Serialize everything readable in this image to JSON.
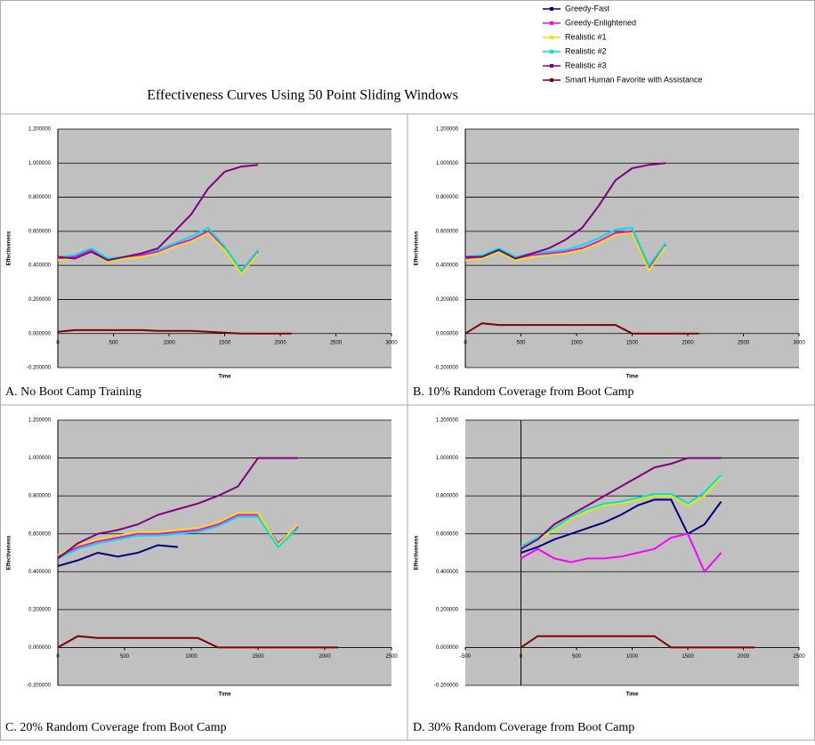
{
  "title": "Effectiveness Curves Using 50 Point Sliding Windows",
  "legend": [
    {
      "name": "Greedy-Fast",
      "color": "#00007f"
    },
    {
      "name": "Greedy-Enlightened",
      "color": "#ff00ff"
    },
    {
      "name": "Realistic #1",
      "color": "#e8e800"
    },
    {
      "name": "Realistic #2",
      "color": "#00e0e0"
    },
    {
      "name": "Realistic #3",
      "color": "#800080"
    },
    {
      "name": "Smart Human Favorite with Assistance",
      "color": "#800000"
    }
  ],
  "chart_data": [
    {
      "type": "line",
      "caption": "A. No Boot Camp Training",
      "xlabel": "Time",
      "ylabel": "Effectiveness",
      "grid": true,
      "xlim": [
        0,
        3000
      ],
      "xticks": [
        0,
        500,
        1000,
        1500,
        2000,
        2500,
        3000
      ],
      "ylim": [
        -0.2,
        1.2
      ],
      "yticks": [
        {
          "value": -0.2,
          "label": "-0.200000"
        },
        {
          "value": 0,
          "label": "0.000000"
        },
        {
          "value": 0.2,
          "label": "0.200000"
        },
        {
          "value": 0.4,
          "label": "0.400000"
        },
        {
          "value": 0.6,
          "label": "0.600000"
        },
        {
          "value": 0.8,
          "label": "0.800000"
        },
        {
          "value": 1.0,
          "label": "1.000000"
        },
        {
          "value": 1.2,
          "label": "1.200000"
        }
      ],
      "x": [
        0,
        150,
        300,
        450,
        600,
        750,
        900,
        1050,
        1200,
        1350,
        1500,
        1650,
        1800,
        1950,
        2100
      ],
      "series": [
        {
          "values": [
            0.44,
            0.45,
            0.49,
            0.43,
            0.44,
            0.46,
            0.48,
            0.52,
            0.55,
            0.6,
            0.5,
            0.36,
            0.48,
            null,
            null
          ]
        },
        {
          "values": [
            0.44,
            0.45,
            0.49,
            0.43,
            0.44,
            0.46,
            0.48,
            0.52,
            0.55,
            0.6,
            0.5,
            0.36,
            0.48,
            null,
            null
          ]
        },
        {
          "values": [
            0.43,
            0.44,
            0.48,
            0.42,
            0.44,
            0.45,
            0.47,
            0.51,
            0.54,
            0.59,
            0.49,
            0.35,
            0.47,
            null,
            null
          ]
        },
        {
          "values": [
            0.45,
            0.46,
            0.5,
            0.44,
            0.45,
            0.47,
            0.49,
            0.53,
            0.57,
            0.62,
            0.51,
            0.37,
            0.49,
            null,
            null
          ]
        },
        {
          "values": [
            0.45,
            0.44,
            0.48,
            0.43,
            0.45,
            0.47,
            0.5,
            0.6,
            0.7,
            0.85,
            0.95,
            0.98,
            0.99,
            null,
            null
          ]
        },
        {
          "values": [
            0.01,
            0.02,
            0.02,
            0.02,
            0.02,
            0.02,
            0.015,
            0.015,
            0.015,
            0.01,
            0.005,
            0,
            0,
            0,
            0
          ]
        }
      ]
    },
    {
      "type": "line",
      "caption": "B. 10% Random Coverage from Boot Camp",
      "xlabel": "Time",
      "ylabel": "Effectiveness",
      "grid": true,
      "xlim": [
        0,
        3000
      ],
      "xticks": [
        0,
        500,
        1000,
        1500,
        2000,
        2500,
        3000
      ],
      "ylim": [
        -0.2,
        1.2
      ],
      "yticks": [
        {
          "value": -0.2,
          "label": "-0.200000"
        },
        {
          "value": 0,
          "label": "0.000000"
        },
        {
          "value": 0.2,
          "label": "0.200000"
        },
        {
          "value": 0.4,
          "label": "0.400000"
        },
        {
          "value": 0.6,
          "label": "0.600000"
        },
        {
          "value": 0.8,
          "label": "0.800000"
        },
        {
          "value": 1.0,
          "label": "1.000000"
        },
        {
          "value": 1.2,
          "label": "1.200000"
        }
      ],
      "x": [
        0,
        150,
        300,
        450,
        600,
        750,
        900,
        1050,
        1200,
        1350,
        1500,
        1650,
        1800,
        1950,
        2100
      ],
      "series": [
        {
          "values": [
            0.44,
            0.45,
            0.49,
            0.44,
            0.46,
            0.47,
            0.48,
            0.5,
            0.54,
            0.59,
            0.6,
            0.38,
            0.52,
            null,
            null
          ]
        },
        {
          "values": [
            0.44,
            0.45,
            0.49,
            0.44,
            0.46,
            0.47,
            0.48,
            0.5,
            0.54,
            0.59,
            0.6,
            0.38,
            0.52,
            null,
            null
          ]
        },
        {
          "values": [
            0.43,
            0.44,
            0.48,
            0.43,
            0.45,
            0.46,
            0.47,
            0.49,
            0.53,
            0.58,
            0.59,
            0.37,
            0.51,
            null,
            null
          ]
        },
        {
          "values": [
            0.45,
            0.46,
            0.5,
            0.45,
            0.47,
            0.48,
            0.49,
            0.52,
            0.56,
            0.61,
            0.62,
            0.4,
            0.53,
            null,
            null
          ]
        },
        {
          "values": [
            0.45,
            0.45,
            0.49,
            0.44,
            0.47,
            0.5,
            0.55,
            0.62,
            0.75,
            0.9,
            0.97,
            0.99,
            1.0,
            null,
            null
          ]
        },
        {
          "values": [
            0,
            0.06,
            0.05,
            0.05,
            0.05,
            0.05,
            0.05,
            0.05,
            0.05,
            0.05,
            0,
            0,
            0,
            0,
            0
          ]
        }
      ]
    },
    {
      "type": "line",
      "caption": "C. 20% Random Coverage from Boot Camp",
      "xlabel": "Time",
      "ylabel": "Effectiveness",
      "grid": true,
      "xlim": [
        0,
        2500
      ],
      "xticks": [
        0,
        500,
        1000,
        1500,
        2000,
        2500
      ],
      "ylim": [
        -0.2,
        1.2
      ],
      "yticks": [
        {
          "value": -0.2,
          "label": "-0.200000"
        },
        {
          "value": 0,
          "label": "0.000000"
        },
        {
          "value": 0.2,
          "label": "0.200000"
        },
        {
          "value": 0.4,
          "label": "0.400000"
        },
        {
          "value": 0.6,
          "label": "0.600000"
        },
        {
          "value": 0.8,
          "label": "0.800000"
        },
        {
          "value": 1.0,
          "label": "1.000000"
        },
        {
          "value": 1.2,
          "label": "1.200000"
        }
      ],
      "x": [
        0,
        150,
        300,
        450,
        600,
        750,
        900,
        1050,
        1200,
        1350,
        1500,
        1650,
        1800,
        1950,
        2100
      ],
      "series": [
        {
          "values": [
            0.43,
            0.46,
            0.5,
            0.48,
            0.5,
            0.54,
            0.53,
            null,
            null,
            null,
            null,
            null,
            null,
            null,
            null
          ]
        },
        {
          "values": [
            0.48,
            0.53,
            0.56,
            0.58,
            0.6,
            0.6,
            0.61,
            0.62,
            0.65,
            0.7,
            0.7,
            0.55,
            0.64,
            null,
            null
          ]
        },
        {
          "values": [
            0.49,
            0.54,
            0.57,
            0.59,
            0.61,
            0.61,
            0.62,
            0.63,
            0.66,
            0.71,
            0.71,
            0.54,
            0.65,
            null,
            null
          ]
        },
        {
          "values": [
            0.47,
            0.52,
            0.55,
            0.57,
            0.59,
            0.59,
            0.6,
            0.61,
            0.64,
            0.69,
            0.69,
            0.53,
            0.63,
            null,
            null
          ]
        },
        {
          "values": [
            0.47,
            0.55,
            0.6,
            0.62,
            0.65,
            0.7,
            0.73,
            0.76,
            0.8,
            0.85,
            1.0,
            1.0,
            1.0,
            null,
            null
          ]
        },
        {
          "values": [
            0,
            0.06,
            0.05,
            0.05,
            0.05,
            0.05,
            0.05,
            0.05,
            0,
            0,
            0,
            0,
            0,
            0,
            0
          ]
        }
      ]
    },
    {
      "type": "line",
      "caption": "D. 30% Random Coverage from Boot Camp",
      "xlabel": "Time",
      "ylabel": "Effectiveness",
      "grid": true,
      "xlim": [
        -500,
        2500
      ],
      "xticks": [
        -500,
        0,
        500,
        1000,
        1500,
        2000,
        2500
      ],
      "ylim": [
        -0.2,
        1.2
      ],
      "yticks": [
        {
          "value": -0.2,
          "label": "-0.200000"
        },
        {
          "value": 0,
          "label": "0.000000"
        },
        {
          "value": 0.2,
          "label": "0.200000"
        },
        {
          "value": 0.4,
          "label": "0.400000"
        },
        {
          "value": 0.6,
          "label": "0.600000"
        },
        {
          "value": 0.8,
          "label": "0.800000"
        },
        {
          "value": 1.0,
          "label": "1.000000"
        },
        {
          "value": 1.2,
          "label": "1.200000"
        }
      ],
      "x": [
        0,
        150,
        300,
        450,
        600,
        750,
        900,
        1050,
        1200,
        1350,
        1500,
        1650,
        1800,
        1950,
        2100
      ],
      "series": [
        {
          "values": [
            0.5,
            0.53,
            0.57,
            0.6,
            0.63,
            0.66,
            0.7,
            0.75,
            0.78,
            0.78,
            0.6,
            0.65,
            0.77,
            null,
            null
          ]
        },
        {
          "values": [
            0.47,
            0.52,
            0.47,
            0.45,
            0.47,
            0.47,
            0.48,
            0.5,
            0.52,
            0.58,
            0.6,
            0.4,
            0.5,
            null,
            null
          ]
        },
        {
          "values": [
            0.52,
            0.57,
            0.62,
            0.68,
            0.72,
            0.75,
            0.76,
            0.78,
            0.8,
            0.8,
            0.75,
            0.8,
            0.9,
            null,
            null
          ]
        },
        {
          "values": [
            0.53,
            0.58,
            0.63,
            0.69,
            0.73,
            0.76,
            0.77,
            0.79,
            0.81,
            0.81,
            0.76,
            0.82,
            0.91,
            null,
            null
          ]
        },
        {
          "values": [
            0.52,
            0.57,
            0.65,
            0.7,
            0.75,
            0.8,
            0.85,
            0.9,
            0.95,
            0.97,
            1.0,
            1.0,
            1.0,
            null,
            null
          ]
        },
        {
          "values": [
            0,
            0.06,
            0.06,
            0.06,
            0.06,
            0.06,
            0.06,
            0.06,
            0.06,
            0,
            0,
            0,
            0,
            0,
            0
          ]
        }
      ]
    }
  ]
}
